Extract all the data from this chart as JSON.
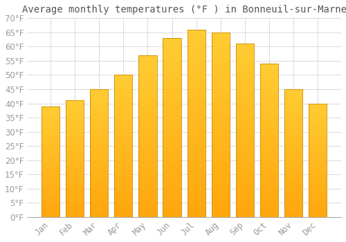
{
  "title": "Average monthly temperatures (°F ) in Bonneuil-sur-Marne",
  "months": [
    "Jan",
    "Feb",
    "Mar",
    "Apr",
    "May",
    "Jun",
    "Jul",
    "Aug",
    "Sep",
    "Oct",
    "Nov",
    "Dec"
  ],
  "values": [
    39,
    41,
    45,
    50,
    57,
    63,
    66,
    65,
    61,
    54,
    45,
    40
  ],
  "bar_color_top": "#FFC125",
  "bar_color_bottom": "#FFB020",
  "bar_edge_color": "#CC8800",
  "background_color": "#FFFFFF",
  "plot_bg_color": "#FFFFFF",
  "grid_color": "#CCCCCC",
  "ylim": [
    0,
    70
  ],
  "yticks": [
    0,
    5,
    10,
    15,
    20,
    25,
    30,
    35,
    40,
    45,
    50,
    55,
    60,
    65,
    70
  ],
  "title_fontsize": 10,
  "tick_fontsize": 8.5,
  "tick_color": "#999999",
  "title_color": "#555555",
  "font_family": "monospace",
  "bar_width": 0.75
}
